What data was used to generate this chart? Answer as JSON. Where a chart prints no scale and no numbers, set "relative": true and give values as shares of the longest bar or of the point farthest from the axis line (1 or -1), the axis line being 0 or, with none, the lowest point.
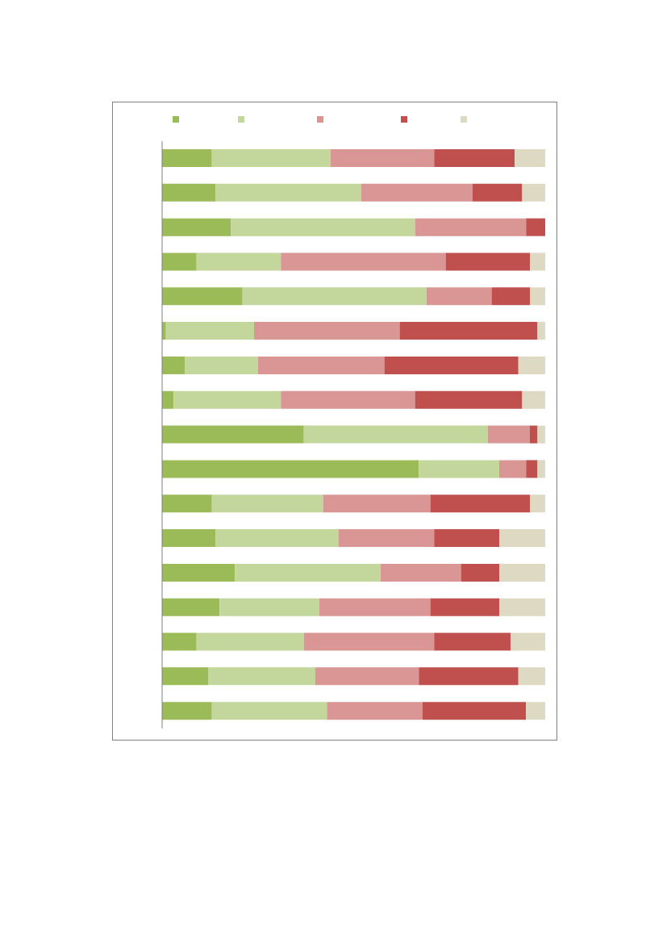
{
  "chart_data": {
    "type": "bar",
    "orientation": "horizontal",
    "stacked": true,
    "relative": true,
    "grid": false,
    "categories": [
      null,
      null,
      null,
      null,
      null,
      null,
      null,
      null,
      null,
      null,
      null,
      null,
      null,
      null,
      null,
      null,
      null
    ],
    "series": [
      {
        "color": "#9bbb59",
        "values": [
          0.13,
          0.14,
          0.18,
          0.09,
          0.21,
          0.01,
          0.06,
          0.03,
          0.37,
          0.67,
          0.13,
          0.14,
          0.19,
          0.15,
          0.09,
          0.12,
          0.13
        ]
      },
      {
        "color": "#c3d69b",
        "values": [
          0.31,
          0.38,
          0.48,
          0.22,
          0.48,
          0.23,
          0.19,
          0.28,
          0.48,
          0.21,
          0.29,
          0.32,
          0.38,
          0.26,
          0.28,
          0.28,
          0.3
        ]
      },
      {
        "color": "#d99694",
        "values": [
          0.27,
          0.29,
          0.29,
          0.43,
          0.17,
          0.38,
          0.33,
          0.35,
          0.11,
          0.07,
          0.28,
          0.25,
          0.21,
          0.29,
          0.34,
          0.27,
          0.25
        ]
      },
      {
        "color": "#c0504d",
        "values": [
          0.21,
          0.13,
          0.05,
          0.22,
          0.1,
          0.36,
          0.35,
          0.28,
          0.02,
          0.03,
          0.26,
          0.17,
          0.1,
          0.18,
          0.2,
          0.26,
          0.27
        ]
      },
      {
        "color": "#ddd9c3",
        "values": [
          0.08,
          0.06,
          0,
          0.04,
          0.04,
          0.02,
          0.07,
          0.06,
          0.02,
          0.02,
          0.04,
          0.12,
          0.12,
          0.12,
          0.09,
          0.07,
          0.05
        ]
      }
    ]
  }
}
